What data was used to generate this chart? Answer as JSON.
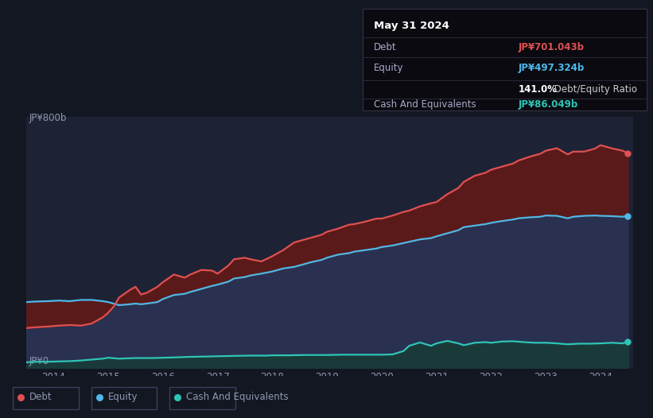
{
  "bg_color": "#131722",
  "plot_bg_color": "#1e2235",
  "title": "May 31 2024",
  "tooltip": {
    "debt_label": "Debt",
    "debt_value": "JP¥701.043b",
    "equity_label": "Equity",
    "equity_value": "JP¥497.324b",
    "ratio_label": "141.0% Debt/Equity Ratio",
    "cash_label": "Cash And Equivalents",
    "cash_value": "JP¥86.049b"
  },
  "debt_color": "#e05050",
  "equity_color": "#4db8e8",
  "cash_color": "#2ec4b6",
  "fill_debt_equity_color": "#5a1a1a",
  "fill_equity_zero_color": "#2a3050",
  "fill_cash_color": "#1a3a3a",
  "ylabel_800": "JP¥800b",
  "ylabel_0": "JP¥0",
  "years": [
    2014,
    2015,
    2016,
    2017,
    2018,
    2019,
    2020,
    2021,
    2022,
    2023,
    2024
  ],
  "debt_data": {
    "x": [
      2013.5,
      2013.7,
      2013.9,
      2014.1,
      2014.3,
      2014.5,
      2014.7,
      2014.9,
      2015.0,
      2015.1,
      2015.2,
      2015.4,
      2015.5,
      2015.6,
      2015.7,
      2015.9,
      2016.0,
      2016.2,
      2016.4,
      2016.5,
      2016.7,
      2016.9,
      2017.0,
      2017.2,
      2017.3,
      2017.5,
      2017.6,
      2017.8,
      2018.0,
      2018.2,
      2018.4,
      2018.5,
      2018.7,
      2018.9,
      2019.0,
      2019.2,
      2019.4,
      2019.5,
      2019.7,
      2019.9,
      2020.0,
      2020.2,
      2020.4,
      2020.5,
      2020.7,
      2020.9,
      2021.0,
      2021.2,
      2021.4,
      2021.5,
      2021.7,
      2021.9,
      2022.0,
      2022.2,
      2022.4,
      2022.5,
      2022.7,
      2022.9,
      2023.0,
      2023.2,
      2023.4,
      2023.5,
      2023.7,
      2023.9,
      2024.0,
      2024.2,
      2024.4,
      2024.5
    ],
    "y": [
      130,
      133,
      135,
      138,
      140,
      138,
      145,
      165,
      180,
      200,
      230,
      255,
      265,
      240,
      245,
      265,
      280,
      305,
      295,
      305,
      320,
      318,
      308,
      335,
      355,
      360,
      355,
      348,
      365,
      385,
      410,
      415,
      425,
      435,
      445,
      455,
      468,
      470,
      478,
      488,
      488,
      498,
      510,
      514,
      528,
      538,
      542,
      568,
      588,
      608,
      628,
      638,
      648,
      658,
      668,
      678,
      690,
      700,
      710,
      718,
      698,
      707,
      707,
      717,
      728,
      718,
      710,
      701
    ]
  },
  "equity_data": {
    "x": [
      2013.5,
      2013.7,
      2013.9,
      2014.1,
      2014.3,
      2014.5,
      2014.7,
      2014.9,
      2015.0,
      2015.1,
      2015.2,
      2015.4,
      2015.5,
      2015.6,
      2015.7,
      2015.9,
      2016.0,
      2016.2,
      2016.4,
      2016.5,
      2016.7,
      2016.9,
      2017.0,
      2017.2,
      2017.3,
      2017.5,
      2017.6,
      2017.8,
      2018.0,
      2018.2,
      2018.4,
      2018.5,
      2018.7,
      2018.9,
      2019.0,
      2019.2,
      2019.4,
      2019.5,
      2019.7,
      2019.9,
      2020.0,
      2020.2,
      2020.4,
      2020.5,
      2020.7,
      2020.9,
      2021.0,
      2021.2,
      2021.4,
      2021.5,
      2021.7,
      2021.9,
      2022.0,
      2022.2,
      2022.4,
      2022.5,
      2022.7,
      2022.9,
      2023.0,
      2023.2,
      2023.4,
      2023.5,
      2023.7,
      2023.9,
      2024.0,
      2024.2,
      2024.4,
      2024.5
    ],
    "y": [
      215,
      217,
      218,
      220,
      218,
      222,
      222,
      218,
      215,
      210,
      205,
      208,
      210,
      208,
      210,
      215,
      225,
      238,
      242,
      248,
      258,
      268,
      272,
      282,
      292,
      297,
      302,
      308,
      315,
      325,
      330,
      335,
      345,
      353,
      360,
      370,
      375,
      380,
      385,
      390,
      395,
      400,
      408,
      412,
      420,
      424,
      430,
      440,
      450,
      460,
      465,
      470,
      474,
      480,
      485,
      489,
      492,
      494,
      498,
      497,
      489,
      494,
      497,
      498,
      497,
      496,
      494,
      497
    ]
  },
  "cash_data": {
    "x": [
      2013.5,
      2013.7,
      2013.9,
      2014.1,
      2014.3,
      2014.5,
      2014.7,
      2014.9,
      2015.0,
      2015.2,
      2015.5,
      2015.8,
      2016.0,
      2016.2,
      2016.5,
      2016.8,
      2017.0,
      2017.3,
      2017.6,
      2017.9,
      2018.0,
      2018.3,
      2018.6,
      2018.9,
      2019.0,
      2019.3,
      2019.6,
      2019.9,
      2020.0,
      2020.2,
      2020.4,
      2020.5,
      2020.7,
      2020.9,
      2021.0,
      2021.2,
      2021.4,
      2021.5,
      2021.7,
      2021.9,
      2022.0,
      2022.2,
      2022.4,
      2022.6,
      2022.8,
      2023.0,
      2023.2,
      2023.4,
      2023.6,
      2023.8,
      2024.0,
      2024.2,
      2024.4,
      2024.5
    ],
    "y": [
      18,
      20,
      20,
      21,
      22,
      24,
      27,
      30,
      33,
      30,
      32,
      32,
      33,
      34,
      36,
      37,
      38,
      39,
      40,
      40,
      41,
      41,
      42,
      42,
      42,
      43,
      43,
      43,
      43,
      44,
      55,
      72,
      83,
      72,
      80,
      88,
      80,
      74,
      82,
      84,
      82,
      86,
      87,
      84,
      82,
      82,
      80,
      77,
      79,
      79,
      80,
      82,
      80,
      86
    ]
  },
  "xlim": [
    2013.5,
    2024.6
  ],
  "ylim": [
    0,
    820
  ],
  "grid_color": "#2d3155",
  "tick_color": "#9099b0",
  "legend_items": [
    {
      "label": "Debt",
      "color": "#e05050"
    },
    {
      "label": "Equity",
      "color": "#4db8e8"
    },
    {
      "label": "Cash And Equivalents",
      "color": "#2ec4b6"
    }
  ],
  "tooltip_bg": "#0a0a10",
  "tooltip_border": "#333344",
  "tooltip_label_color": "#aaaacc",
  "tooltip_ratio_bold_color": "#ffffff",
  "tooltip_ratio_normal_color": "#cccccc"
}
